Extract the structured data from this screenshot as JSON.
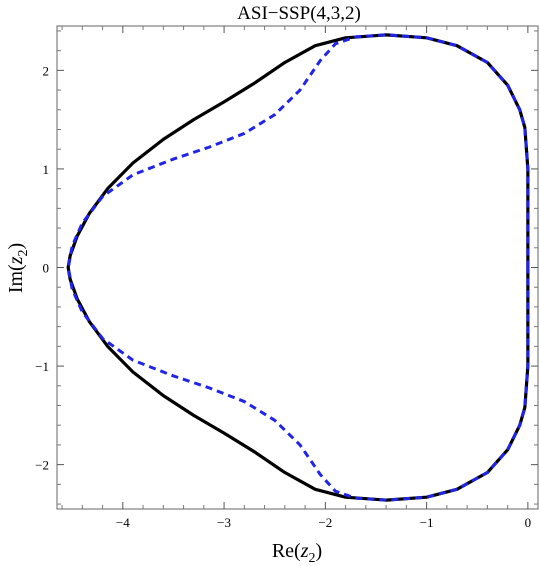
{
  "chart_data": {
    "type": "line",
    "title": "ASI−SSP(4,3,2)",
    "xlabel_pre": "Re(",
    "xlabel_var": "z",
    "xlabel_sub": "2",
    "xlabel_post": ")",
    "ylabel_pre": "Im(",
    "ylabel_var": "z",
    "ylabel_sub": "2",
    "ylabel_post": ")",
    "xlim": [
      -4.65,
      0.1
    ],
    "ylim": [
      -2.45,
      2.45
    ],
    "xticks": [
      -4,
      -3,
      -2,
      -1,
      0
    ],
    "xtick_labels": [
      "−4",
      "−3",
      "−2",
      "−1",
      "0"
    ],
    "yticks": [
      -2,
      -1,
      0,
      1,
      2
    ],
    "ytick_labels": [
      "−2",
      "−1",
      "0",
      "1",
      "2"
    ],
    "grid": false,
    "series": [
      {
        "style": "solid",
        "color": "#000000",
        "points": [
          [
            0.0,
            0.0
          ],
          [
            0.0,
            1.0
          ],
          [
            -0.03,
            1.42
          ],
          [
            -0.08,
            1.6
          ],
          [
            -0.2,
            1.85
          ],
          [
            -0.4,
            2.08
          ],
          [
            -0.7,
            2.25
          ],
          [
            -1.0,
            2.33
          ],
          [
            -1.4,
            2.36
          ],
          [
            -1.8,
            2.33
          ],
          [
            -2.1,
            2.25
          ],
          [
            -2.4,
            2.08
          ],
          [
            -2.7,
            1.87
          ],
          [
            -3.0,
            1.68
          ],
          [
            -3.3,
            1.5
          ],
          [
            -3.6,
            1.3
          ],
          [
            -3.9,
            1.06
          ],
          [
            -4.15,
            0.8
          ],
          [
            -4.33,
            0.55
          ],
          [
            -4.45,
            0.32
          ],
          [
            -4.52,
            0.12
          ],
          [
            -4.54,
            0.0
          ]
        ]
      },
      {
        "style": "dashed",
        "color": "#1f24e6",
        "points": [
          [
            0.0,
            0.0
          ],
          [
            0.0,
            1.0
          ],
          [
            -0.03,
            1.42
          ],
          [
            -0.08,
            1.6
          ],
          [
            -0.2,
            1.85
          ],
          [
            -0.4,
            2.08
          ],
          [
            -0.7,
            2.25
          ],
          [
            -1.0,
            2.33
          ],
          [
            -1.4,
            2.36
          ],
          [
            -1.7,
            2.34
          ],
          [
            -1.9,
            2.27
          ],
          [
            -2.05,
            2.1
          ],
          [
            -2.25,
            1.8
          ],
          [
            -2.5,
            1.55
          ],
          [
            -2.8,
            1.36
          ],
          [
            -3.15,
            1.22
          ],
          [
            -3.5,
            1.1
          ],
          [
            -3.9,
            0.94
          ],
          [
            -4.2,
            0.72
          ],
          [
            -4.4,
            0.45
          ],
          [
            -4.5,
            0.22
          ],
          [
            -4.53,
            0.05
          ],
          [
            -4.54,
            0.0
          ]
        ]
      }
    ]
  }
}
